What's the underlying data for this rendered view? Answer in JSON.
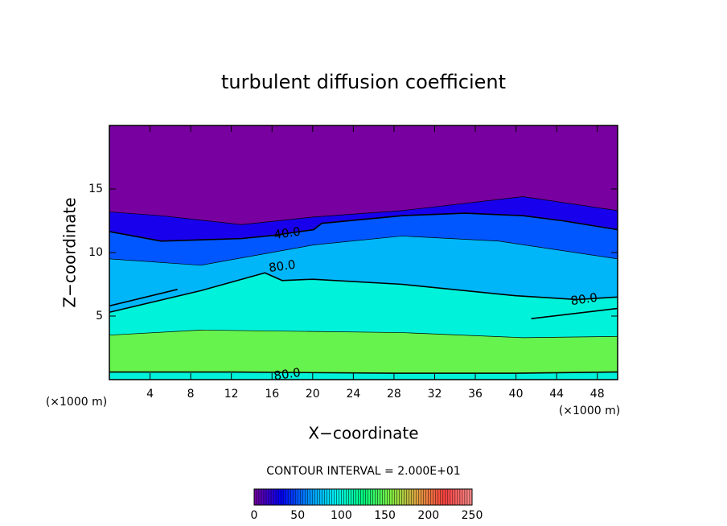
{
  "chart_data": {
    "type": "contour",
    "title": "turbulent diffusion coefficient",
    "xlabel": "X−coordinate",
    "ylabel": "Z−coordinate",
    "x_unit_label": "(×1000 m)",
    "interval_label": "CONTOUR INTERVAL = 2.000E+01",
    "xlim": [
      0,
      50
    ],
    "ylim": [
      0,
      20
    ],
    "xticks": [
      4,
      8,
      12,
      16,
      20,
      24,
      28,
      32,
      36,
      40,
      44,
      48
    ],
    "yticks": [
      5,
      10,
      15
    ],
    "colorbar": {
      "lim": [
        0,
        250
      ],
      "ticks": [
        0,
        50,
        100,
        150,
        200,
        250
      ],
      "colors": [
        "#7800a0",
        "#0000ff",
        "#0090ff",
        "#00f0f0",
        "#00ff80",
        "#80f040",
        "#e0a040",
        "#ff4040",
        "#ff9090"
      ]
    },
    "contours": [
      {
        "level": 20,
        "x": [
          0,
          5.1,
          13,
          20.1,
          28.8,
          40.7,
          50
        ],
        "y": [
          13.2,
          12.9,
          12.2,
          12.8,
          13.3,
          14.4,
          13.3
        ]
      },
      {
        "level": 40,
        "x": [
          0,
          5.1,
          13,
          16.1,
          20.1,
          20.9,
          28.8,
          35,
          40.7,
          44.6,
          50
        ],
        "y": [
          11.65,
          10.9,
          11.1,
          11.35,
          11.8,
          12.3,
          12.9,
          13.1,
          12.9,
          12.5,
          11.8
        ]
      },
      {
        "level": 60,
        "x": [
          0,
          9,
          20.1,
          28.8,
          38.3,
          50
        ],
        "y": [
          9.5,
          9.0,
          10.6,
          11.3,
          10.9,
          9.5
        ]
      },
      {
        "level": 80,
        "x": [
          0,
          9,
          15.3,
          17,
          20,
          28.8,
          40,
          46,
          50
        ],
        "y": [
          5.3,
          7.0,
          8.4,
          7.8,
          7.9,
          7.5,
          6.6,
          6.3,
          6.5
        ]
      },
      {
        "level": 120,
        "x": [
          0,
          9,
          28.8,
          40.7,
          50
        ],
        "y": [
          3.5,
          3.9,
          3.7,
          3.3,
          3.4
        ]
      },
      {
        "level": 80,
        "x": [
          0,
          12,
          28,
          40,
          50
        ],
        "y": [
          0.6,
          0.6,
          0.5,
          0.5,
          0.6
        ]
      },
      {
        "level": 80,
        "x": [
          0,
          6.7
        ],
        "y": [
          5.8,
          7.1
        ]
      },
      {
        "level": 80,
        "x": [
          41.5,
          50
        ],
        "y": [
          4.8,
          5.6
        ]
      }
    ],
    "contour_labels": [
      {
        "value": 40,
        "label": "40.0",
        "x": 17.5,
        "y": 11.5
      },
      {
        "value": 80,
        "label": "80.0",
        "x": 17,
        "y": 8.9
      },
      {
        "value": 80,
        "label": "80.0",
        "x": 46.7,
        "y": 6.3
      },
      {
        "value": 80,
        "label": "80.0",
        "x": 17.5,
        "y": 0.4
      }
    ]
  }
}
